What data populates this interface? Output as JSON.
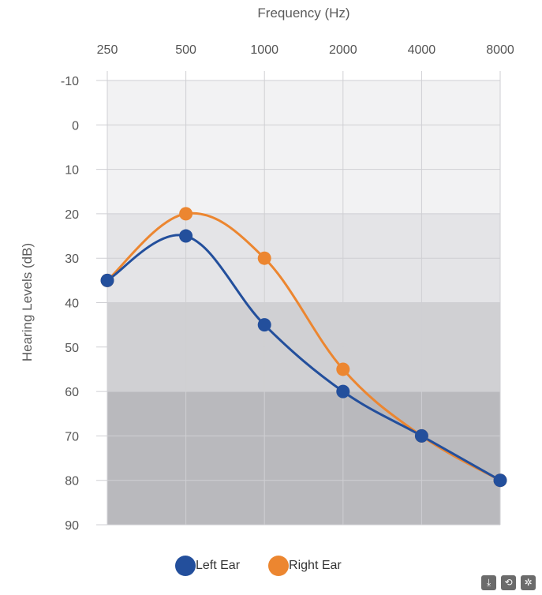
{
  "chart_data": {
    "type": "line",
    "title": "",
    "xlabel": "Frequency (Hz)",
    "ylabel": "Hearing Levels (dB)",
    "categories": [
      "250",
      "500",
      "1000",
      "2000",
      "4000",
      "8000"
    ],
    "y_ticks": [
      "-10",
      "0",
      "10",
      "20",
      "30",
      "40",
      "50",
      "60",
      "70",
      "80",
      "90"
    ],
    "ylim": [
      -10,
      90
    ],
    "y_reversed": true,
    "x_axis_position": "top",
    "grid": true,
    "bands": [
      {
        "from": -10,
        "to": 20,
        "color": "#f2f2f3"
      },
      {
        "from": 20,
        "to": 40,
        "color": "#e4e4e7"
      },
      {
        "from": 40,
        "to": 60,
        "color": "#d0d0d3"
      },
      {
        "from": 60,
        "to": 90,
        "color": "#b9b9bd"
      }
    ],
    "series": [
      {
        "name": "Left Ear",
        "color": "#234f9c",
        "values": [
          35,
          25,
          45,
          60,
          70,
          80
        ]
      },
      {
        "name": "Right Ear",
        "color": "#ec8630",
        "values": [
          35,
          20,
          30,
          55,
          70,
          80
        ]
      }
    ],
    "legend_position": "bottom-center"
  },
  "toolbar": {
    "download_icon": "download-icon",
    "share_icon": "share-icon",
    "settings_icon": "settings-icon"
  }
}
